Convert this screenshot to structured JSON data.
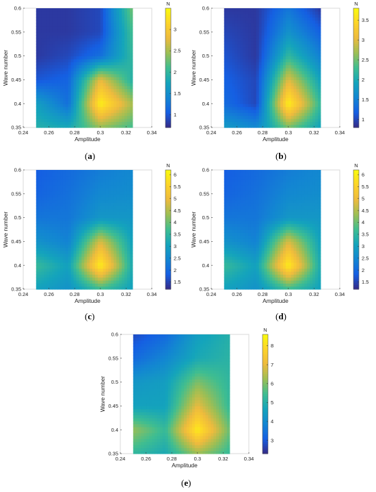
{
  "chart_data": [
    {
      "type": "heatmap",
      "caption": "a",
      "xlabel": "Amplitude",
      "ylabel": "Wave number",
      "colorbar_label": "N",
      "x_ticks": [
        "0.24",
        "0.26",
        "0.28",
        "0.3",
        "0.32",
        "0.34"
      ],
      "y_ticks": [
        "0.35",
        "0.4",
        "0.45",
        "0.5",
        "0.55",
        "0.6"
      ],
      "colorbar_ticks": [
        "1",
        "1.5",
        "2",
        "2.5",
        "3"
      ],
      "xlim": [
        0.24,
        0.34
      ],
      "ylim": [
        0.35,
        0.6
      ],
      "clim": [
        0.7,
        3.5
      ],
      "x": [
        0.25,
        0.275,
        0.3,
        0.325
      ],
      "y": [
        0.35,
        0.4,
        0.45,
        0.5,
        0.55,
        0.6
      ],
      "z": [
        [
          1.9,
          1.8,
          2.4,
          2.1
        ],
        [
          1.7,
          1.2,
          3.4,
          2.5
        ],
        [
          1.0,
          1.1,
          2.8,
          1.9
        ],
        [
          0.8,
          0.9,
          1.2,
          2.0
        ],
        [
          0.8,
          0.8,
          0.9,
          2.1
        ],
        [
          0.8,
          0.8,
          0.9,
          2.3
        ]
      ]
    },
    {
      "type": "heatmap",
      "caption": "b",
      "xlabel": "Amplitude",
      "ylabel": "Wave number",
      "colorbar_label": "N",
      "x_ticks": [
        "0.24",
        "0.26",
        "0.28",
        "0.3",
        "0.32",
        "0.34"
      ],
      "y_ticks": [
        "0.35",
        "0.4",
        "0.45",
        "0.5",
        "0.55",
        "0.6"
      ],
      "colorbar_ticks": [
        "1",
        "1.5",
        "2",
        "2.5",
        "3",
        "3.5"
      ],
      "xlim": [
        0.24,
        0.34
      ],
      "ylim": [
        0.35,
        0.6
      ],
      "clim": [
        0.8,
        3.8
      ],
      "x": [
        0.25,
        0.275,
        0.3,
        0.325
      ],
      "y": [
        0.35,
        0.4,
        0.45,
        0.5,
        0.55,
        0.6
      ],
      "z": [
        [
          1.8,
          1.6,
          2.5,
          1.9
        ],
        [
          1.3,
          1.0,
          3.7,
          2.2
        ],
        [
          1.2,
          1.0,
          3.0,
          1.9
        ],
        [
          1.1,
          0.9,
          2.2,
          1.5
        ],
        [
          1.0,
          0.9,
          1.7,
          1.2
        ],
        [
          0.9,
          0.9,
          1.4,
          0.9
        ]
      ]
    },
    {
      "type": "heatmap",
      "caption": "c",
      "xlabel": "Amplitude",
      "ylabel": "Wave number",
      "colorbar_label": "N",
      "x_ticks": [
        "0.24",
        "0.26",
        "0.28",
        "0.3",
        "0.32",
        "0.34"
      ],
      "y_ticks": [
        "0.35",
        "0.4",
        "0.45",
        "0.5",
        "0.55",
        "0.6"
      ],
      "colorbar_ticks": [
        "1.5",
        "2",
        "2.5",
        "3",
        "3.5",
        "4",
        "4.5",
        "5",
        "5.5",
        "6"
      ],
      "xlim": [
        0.24,
        0.34
      ],
      "ylim": [
        0.35,
        0.6
      ],
      "clim": [
        1.2,
        6.2
      ],
      "x": [
        0.25,
        0.275,
        0.3,
        0.325
      ],
      "y": [
        0.35,
        0.4,
        0.45,
        0.5,
        0.55,
        0.6
      ],
      "z": [
        [
          3.0,
          2.7,
          3.6,
          3.0
        ],
        [
          3.6,
          3.0,
          6.0,
          3.2
        ],
        [
          2.7,
          2.4,
          4.8,
          3.0
        ],
        [
          2.2,
          2.2,
          2.8,
          2.8
        ],
        [
          1.9,
          2.1,
          2.5,
          2.6
        ],
        [
          1.8,
          2.0,
          2.3,
          2.5
        ]
      ]
    },
    {
      "type": "heatmap",
      "caption": "d",
      "xlabel": "Amplitude",
      "ylabel": "Wave number",
      "colorbar_label": "N",
      "x_ticks": [
        "0.24",
        "0.26",
        "0.28",
        "0.3",
        "0.32",
        "0.34"
      ],
      "y_ticks": [
        "0.35",
        "0.4",
        "0.45",
        "0.5",
        "0.55",
        "0.6"
      ],
      "colorbar_ticks": [
        "1.5",
        "2",
        "2.5",
        "3",
        "3.5",
        "4",
        "4.5",
        "5",
        "5.5",
        "6"
      ],
      "xlim": [
        0.24,
        0.34
      ],
      "ylim": [
        0.35,
        0.6
      ],
      "clim": [
        1.2,
        6.2
      ],
      "x": [
        0.25,
        0.275,
        0.3,
        0.325
      ],
      "y": [
        0.35,
        0.4,
        0.45,
        0.5,
        0.55,
        0.6
      ],
      "z": [
        [
          3.0,
          2.7,
          3.6,
          3.0
        ],
        [
          3.6,
          3.0,
          6.0,
          3.2
        ],
        [
          2.7,
          2.4,
          4.8,
          3.0
        ],
        [
          2.2,
          2.2,
          2.8,
          2.8
        ],
        [
          1.9,
          2.1,
          2.5,
          2.6
        ],
        [
          1.8,
          2.0,
          2.3,
          2.5
        ]
      ]
    },
    {
      "type": "heatmap",
      "caption": "e",
      "xlabel": "Amplitude",
      "ylabel": "Wave number",
      "colorbar_label": "N",
      "x_ticks": [
        "0.24",
        "0.26",
        "0.28",
        "0.3",
        "0.32",
        "0.34"
      ],
      "y_ticks": [
        "0.35",
        "0.4",
        "0.45",
        "0.5",
        "0.55",
        "0.6"
      ],
      "colorbar_ticks": [
        "3",
        "4",
        "5",
        "6",
        "7",
        "8"
      ],
      "xlim": [
        0.24,
        0.34
      ],
      "ylim": [
        0.35,
        0.6
      ],
      "clim": [
        2.3,
        8.6
      ],
      "x": [
        0.25,
        0.275,
        0.3,
        0.325
      ],
      "y": [
        0.35,
        0.4,
        0.45,
        0.5,
        0.55,
        0.6
      ],
      "z": [
        [
          5.2,
          4.8,
          6.2,
          5.3
        ],
        [
          6.2,
          5.3,
          8.3,
          5.8
        ],
        [
          4.6,
          4.6,
          7.0,
          5.3
        ],
        [
          4.3,
          4.5,
          6.0,
          5.2
        ],
        [
          3.3,
          3.9,
          4.8,
          5.1
        ],
        [
          2.8,
          3.3,
          4.5,
          5.0
        ]
      ]
    }
  ]
}
